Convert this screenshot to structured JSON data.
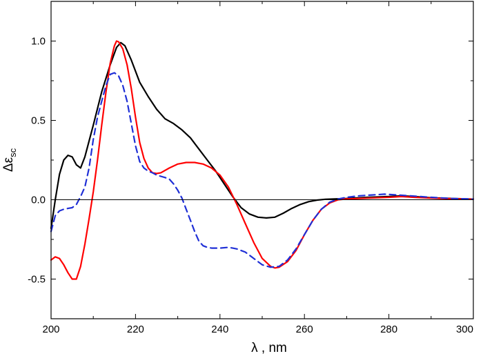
{
  "chart_data": {
    "type": "line",
    "title": "",
    "xlabel": "λ  ,  nm",
    "ylabel_main": "Δε",
    "ylabel_sub": "sc",
    "xlim": [
      200,
      300
    ],
    "ylim": [
      -0.75,
      1.25
    ],
    "x_ticks": [
      200,
      220,
      240,
      260,
      280,
      300
    ],
    "x_tick_labels": [
      "200",
      "220",
      "240",
      "260",
      "280",
      "300"
    ],
    "y_ticks": [
      -0.5,
      0.0,
      0.5,
      1.0
    ],
    "y_tick_labels": [
      "-0.5",
      "0.0",
      "0.5",
      "1.0"
    ],
    "zero_line": true,
    "grid": false,
    "series": [
      {
        "color": "#000000",
        "dash": "solid",
        "points": [
          [
            200,
            -0.18
          ],
          [
            201,
            0.0
          ],
          [
            202,
            0.16
          ],
          [
            203,
            0.25
          ],
          [
            204,
            0.28
          ],
          [
            205,
            0.27
          ],
          [
            206,
            0.22
          ],
          [
            207,
            0.2
          ],
          [
            208,
            0.27
          ],
          [
            210,
            0.47
          ],
          [
            212,
            0.68
          ],
          [
            214,
            0.85
          ],
          [
            215.5,
            0.96
          ],
          [
            216.5,
            0.99
          ],
          [
            217.5,
            0.97
          ],
          [
            219,
            0.88
          ],
          [
            221,
            0.74
          ],
          [
            223,
            0.65
          ],
          [
            225,
            0.57
          ],
          [
            227,
            0.51
          ],
          [
            229,
            0.48
          ],
          [
            231,
            0.44
          ],
          [
            233,
            0.39
          ],
          [
            235,
            0.32
          ],
          [
            237,
            0.25
          ],
          [
            239,
            0.18
          ],
          [
            241,
            0.1
          ],
          [
            243,
            0.02
          ],
          [
            245,
            -0.05
          ],
          [
            247,
            -0.09
          ],
          [
            249,
            -0.11
          ],
          [
            251,
            -0.115
          ],
          [
            253,
            -0.11
          ],
          [
            255,
            -0.085
          ],
          [
            257,
            -0.055
          ],
          [
            259,
            -0.03
          ],
          [
            261,
            -0.012
          ],
          [
            263,
            -0.002
          ],
          [
            265,
            0.003
          ],
          [
            270,
            0.008
          ],
          [
            275,
            0.015
          ],
          [
            280,
            0.02
          ],
          [
            283,
            0.025
          ],
          [
            286,
            0.02
          ],
          [
            290,
            0.012
          ],
          [
            295,
            0.008
          ],
          [
            300,
            0.004
          ]
        ]
      },
      {
        "color": "#ff0000",
        "dash": "solid",
        "points": [
          [
            200,
            -0.38
          ],
          [
            201,
            -0.36
          ],
          [
            202,
            -0.37
          ],
          [
            203,
            -0.41
          ],
          [
            204,
            -0.46
          ],
          [
            205,
            -0.5
          ],
          [
            206,
            -0.5
          ],
          [
            207,
            -0.42
          ],
          [
            208,
            -0.28
          ],
          [
            209,
            -0.12
          ],
          [
            210,
            0.05
          ],
          [
            211,
            0.25
          ],
          [
            212,
            0.47
          ],
          [
            213,
            0.68
          ],
          [
            214,
            0.86
          ],
          [
            215,
            0.97
          ],
          [
            215.5,
            1.0
          ],
          [
            216,
            0.995
          ],
          [
            217,
            0.95
          ],
          [
            218,
            0.85
          ],
          [
            219,
            0.7
          ],
          [
            220,
            0.52
          ],
          [
            221,
            0.36
          ],
          [
            222,
            0.26
          ],
          [
            223,
            0.2
          ],
          [
            224,
            0.17
          ],
          [
            225,
            0.165
          ],
          [
            226,
            0.17
          ],
          [
            228,
            0.2
          ],
          [
            230,
            0.225
          ],
          [
            232,
            0.235
          ],
          [
            234,
            0.235
          ],
          [
            236,
            0.225
          ],
          [
            238,
            0.2
          ],
          [
            240,
            0.155
          ],
          [
            242,
            0.08
          ],
          [
            244,
            -0.03
          ],
          [
            246,
            -0.15
          ],
          [
            248,
            -0.27
          ],
          [
            250,
            -0.37
          ],
          [
            252,
            -0.42
          ],
          [
            253,
            -0.43
          ],
          [
            254,
            -0.425
          ],
          [
            256,
            -0.39
          ],
          [
            258,
            -0.32
          ],
          [
            260,
            -0.22
          ],
          [
            262,
            -0.13
          ],
          [
            264,
            -0.06
          ],
          [
            266,
            -0.02
          ],
          [
            268,
            0.0
          ],
          [
            270,
            0.005
          ],
          [
            275,
            0.01
          ],
          [
            280,
            0.015
          ],
          [
            283,
            0.02
          ],
          [
            286,
            0.015
          ],
          [
            290,
            0.01
          ],
          [
            295,
            0.006
          ],
          [
            300,
            0.003
          ]
        ]
      },
      {
        "color": "#1f2fd6",
        "dash": "dashed",
        "points": [
          [
            200,
            -0.2
          ],
          [
            201,
            -0.1
          ],
          [
            202,
            -0.07
          ],
          [
            203,
            -0.06
          ],
          [
            204,
            -0.055
          ],
          [
            205,
            -0.05
          ],
          [
            206,
            -0.03
          ],
          [
            207,
            0.02
          ],
          [
            208,
            0.08
          ],
          [
            209,
            0.2
          ],
          [
            210,
            0.38
          ],
          [
            211,
            0.52
          ],
          [
            212,
            0.62
          ],
          [
            213,
            0.72
          ],
          [
            214,
            0.79
          ],
          [
            215,
            0.8
          ],
          [
            216,
            0.78
          ],
          [
            217,
            0.72
          ],
          [
            218,
            0.62
          ],
          [
            219,
            0.48
          ],
          [
            220,
            0.34
          ],
          [
            221,
            0.24
          ],
          [
            222,
            0.2
          ],
          [
            223,
            0.18
          ],
          [
            224,
            0.17
          ],
          [
            225,
            0.155
          ],
          [
            227,
            0.14
          ],
          [
            228,
            0.13
          ],
          [
            229,
            0.1
          ],
          [
            230,
            0.06
          ],
          [
            231,
            0.01
          ],
          [
            232,
            -0.06
          ],
          [
            233,
            -0.13
          ],
          [
            234,
            -0.2
          ],
          [
            235,
            -0.26
          ],
          [
            236,
            -0.29
          ],
          [
            237,
            -0.3
          ],
          [
            238,
            -0.305
          ],
          [
            240,
            -0.305
          ],
          [
            242,
            -0.3
          ],
          [
            243,
            -0.305
          ],
          [
            244,
            -0.31
          ],
          [
            246,
            -0.33
          ],
          [
            248,
            -0.37
          ],
          [
            250,
            -0.41
          ],
          [
            252,
            -0.425
          ],
          [
            254,
            -0.42
          ],
          [
            256,
            -0.38
          ],
          [
            258,
            -0.31
          ],
          [
            260,
            -0.22
          ],
          [
            262,
            -0.13
          ],
          [
            264,
            -0.06
          ],
          [
            266,
            -0.015
          ],
          [
            268,
            0.005
          ],
          [
            270,
            0.015
          ],
          [
            273,
            0.025
          ],
          [
            276,
            0.03
          ],
          [
            279,
            0.035
          ],
          [
            282,
            0.03
          ],
          [
            285,
            0.025
          ],
          [
            290,
            0.015
          ],
          [
            295,
            0.008
          ],
          [
            300,
            0.004
          ]
        ]
      }
    ]
  }
}
